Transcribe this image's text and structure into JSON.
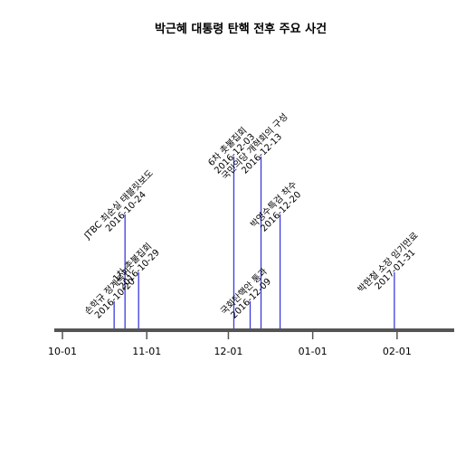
{
  "chart_data": {
    "type": "timeline",
    "title": "박근혜 대통령 탄핵 전후 주요 사건",
    "x_ticks": [
      "2016-10-01",
      "2016-11-01",
      "2016-12-01",
      "2017-01-01",
      "2017-02-01"
    ],
    "x_tick_labels": [
      "10-01",
      "11-01",
      "12-01",
      "01-01",
      "02-01"
    ],
    "x_range": [
      "2016-09-28",
      "2017-02-22"
    ],
    "grid": false,
    "events": [
      {
        "date": "2016-10-20",
        "label": "손학규 정계복귀",
        "date_label": "2016-10-20",
        "height": 2
      },
      {
        "date": "2016-10-24",
        "label": "JTBC 최순실 태블릿보도",
        "date_label": "2016-10-24",
        "height": 8
      },
      {
        "date": "2016-10-29",
        "label": "1차 촛불집회",
        "date_label": "2016-10-29",
        "height": 4
      },
      {
        "date": "2016-12-03",
        "label": "6차 촛불집회",
        "date_label": "2016-12-03",
        "height": 12
      },
      {
        "date": "2016-12-09",
        "label": "국회탄핵안 통과",
        "date_label": "2016-12-09",
        "height": 2
      },
      {
        "date": "2016-12-13",
        "label": "국민의당 개혁회의 구성",
        "date_label": "2016-12-13",
        "height": 12
      },
      {
        "date": "2016-12-20",
        "label": "박영수특검 착수",
        "date_label": "2016-12-20",
        "height": 8
      },
      {
        "date": "2017-01-31",
        "label": "박한철 소장 임기만료",
        "date_label": "2017-01-31",
        "height": 4
      }
    ],
    "colors": {
      "stem": "#3a3adf",
      "baseline": "#555555"
    }
  }
}
